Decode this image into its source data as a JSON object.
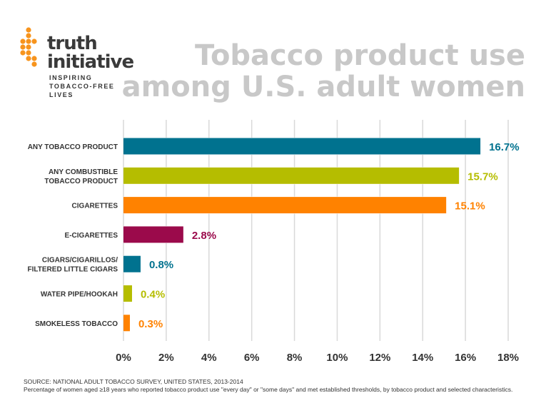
{
  "logo": {
    "line1": "truth",
    "line2": "initiative",
    "tagline": [
      "INSPIRING",
      "TOBACCO-FREE",
      "LIVES"
    ],
    "color": "#f7941d"
  },
  "title": [
    "Tobacco product use",
    "among U.S. adult women"
  ],
  "footer": {
    "source": "SOURCE: NATIONAL ADULT TOBACCO SURVEY, UNITED STATES, 2013-2014",
    "note": "Percentage of women aged ≥18 years who reported tobacco product use \"every day\" or \"some days\" and met established thresholds, by tobacco product and selected characteristics."
  },
  "chart_data": {
    "type": "bar",
    "orientation": "horizontal",
    "categories": [
      [
        "ANY TOBACCO PRODUCT"
      ],
      [
        "ANY COMBUSTIBLE",
        "TOBACCO PRODUCT"
      ],
      [
        "CIGARETTES"
      ],
      [
        "E-CIGARETTES"
      ],
      [
        "CIGARS/CIGARILLOS/",
        "FILTERED LITTLE CIGARS"
      ],
      [
        "WATER PIPE/HOOKAH"
      ],
      [
        "SMOKELESS TOBACCO"
      ]
    ],
    "values": [
      16.7,
      15.7,
      15.1,
      2.8,
      0.8,
      0.4,
      0.3
    ],
    "labels": [
      "16.7%",
      "15.7%",
      "15.1%",
      "2.8%",
      "0.8%",
      "0.4%",
      "0.3%"
    ],
    "colors": [
      "#00728f",
      "#b5bd00",
      "#ff8200",
      "#9b0a4b",
      "#00728f",
      "#b5bd00",
      "#ff8200"
    ],
    "xlim": [
      0,
      18
    ],
    "xticks": [
      "0%",
      "2%",
      "4%",
      "6%",
      "8%",
      "10%",
      "12%",
      "14%",
      "16%",
      "18%"
    ],
    "grid": true
  }
}
